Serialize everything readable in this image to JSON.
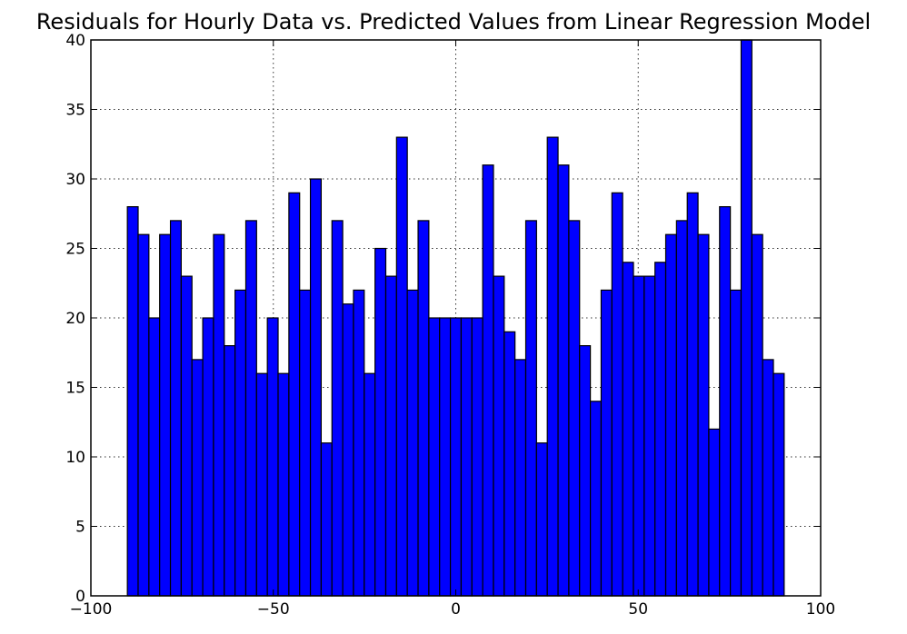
{
  "chart_data": {
    "type": "bar",
    "title": "Residuals for Hourly Data vs. Predicted Values from Linear Regression Model",
    "xlabel": "",
    "ylabel": "",
    "xlim": [
      -100,
      100
    ],
    "ylim": [
      0,
      40
    ],
    "xticks": [
      -100,
      -50,
      0,
      50,
      100
    ],
    "yticks": [
      0,
      5,
      10,
      15,
      20,
      25,
      30,
      35,
      40
    ],
    "xtick_labels": [
      "−100",
      "−50",
      "0",
      "50",
      "100"
    ],
    "ytick_labels": [
      "0",
      "5",
      "10",
      "15",
      "20",
      "25",
      "30",
      "35",
      "40"
    ],
    "grid": true,
    "bar_color": "#0000ff",
    "edge_color": "#000000",
    "bin_start": -90,
    "bin_end": 90,
    "counts": [
      28,
      26,
      20,
      26,
      27,
      23,
      17,
      20,
      26,
      18,
      22,
      27,
      16,
      20,
      16,
      29,
      22,
      30,
      11,
      27,
      21,
      22,
      16,
      25,
      23,
      33,
      22,
      27,
      20,
      20,
      20,
      20,
      20,
      31,
      23,
      19,
      17,
      27,
      11,
      33,
      31,
      27,
      18,
      14,
      22,
      29,
      24,
      23,
      23,
      24,
      26,
      27,
      29,
      26,
      12,
      28,
      22,
      40,
      26,
      17,
      16
    ]
  }
}
